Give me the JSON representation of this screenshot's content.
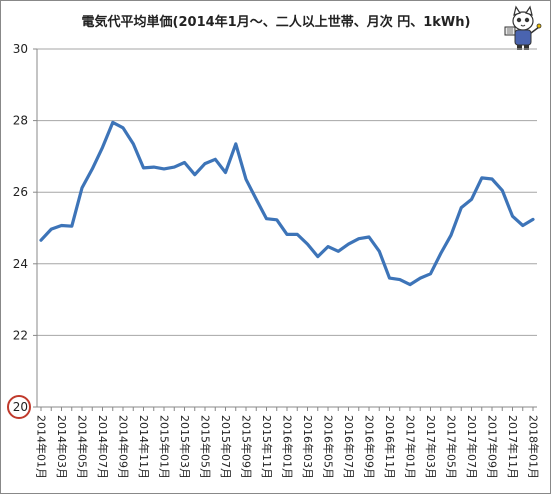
{
  "chart_data": {
    "type": "line",
    "title": "電気代平均単価(2014年1月～、二人以上世帯、月次 円、1kWh)",
    "xlabel": "",
    "ylabel": "",
    "ylim": [
      20,
      30
    ],
    "yticks": [
      20,
      22,
      24,
      26,
      28,
      30
    ],
    "ytick_labels": [
      "20",
      "22",
      "24",
      "26",
      "28",
      "30"
    ],
    "grid": true,
    "legend": "none",
    "highlighted_tick": "20",
    "x": [
      "2014年01月",
      "2014年02月",
      "2014年03月",
      "2014年04月",
      "2014年05月",
      "2014年06月",
      "2014年07月",
      "2014年08月",
      "2014年09月",
      "2014年10月",
      "2014年11月",
      "2014年12月",
      "2015年01月",
      "2015年02月",
      "2015年03月",
      "2015年04月",
      "2015年05月",
      "2015年06月",
      "2015年07月",
      "2015年08月",
      "2015年09月",
      "2015年10月",
      "2015年11月",
      "2015年12月",
      "2016年01月",
      "2016年02月",
      "2016年03月",
      "2016年04月",
      "2016年05月",
      "2016年06月",
      "2016年07月",
      "2016年08月",
      "2016年09月",
      "2016年10月",
      "2016年11月",
      "2016年12月",
      "2017年01月",
      "2017年02月",
      "2017年03月",
      "2017年04月",
      "2017年05月",
      "2017年06月",
      "2017年07月",
      "2017年08月",
      "2017年09月",
      "2017年10月",
      "2017年11月",
      "2017年12月",
      "2018年01月"
    ],
    "xtick_labels": [
      "2014年01月",
      "2014年03月",
      "2014年05月",
      "2014年07月",
      "2014年09月",
      "2014年11月",
      "2015年01月",
      "2015年03月",
      "2015年05月",
      "2015年07月",
      "2015年09月",
      "2015年11月",
      "2016年01月",
      "2016年03月",
      "2016年05月",
      "2016年07月",
      "2016年09月",
      "2016年11月",
      "2017年01月",
      "2017年03月",
      "2017年05月",
      "2017年07月",
      "2017年09月",
      "2017年11月",
      "2018年01月"
    ],
    "series": [
      {
        "values": [
          24.66,
          24.97,
          25.07,
          25.05,
          26.12,
          26.65,
          27.25,
          27.95,
          27.8,
          27.35,
          26.68,
          26.7,
          26.65,
          26.7,
          26.83,
          26.49,
          26.8,
          26.92,
          26.55,
          27.35,
          26.36,
          25.8,
          25.26,
          25.23,
          24.82,
          24.82,
          24.55,
          24.2,
          24.48,
          24.35,
          24.55,
          24.7,
          24.75,
          24.35,
          23.6,
          23.56,
          23.42,
          23.6,
          23.72,
          24.29,
          24.8,
          25.57,
          25.8,
          26.4,
          26.37,
          26.05,
          25.33,
          25.07,
          25.24
        ]
      }
    ]
  },
  "colors": {
    "line": "#3d74b8",
    "grid": "#a6a6a6",
    "axis": "#888888",
    "highlight_circle": "#c0392b"
  },
  "decor": {
    "mascot_icon": "mascot-cat-icon"
  }
}
